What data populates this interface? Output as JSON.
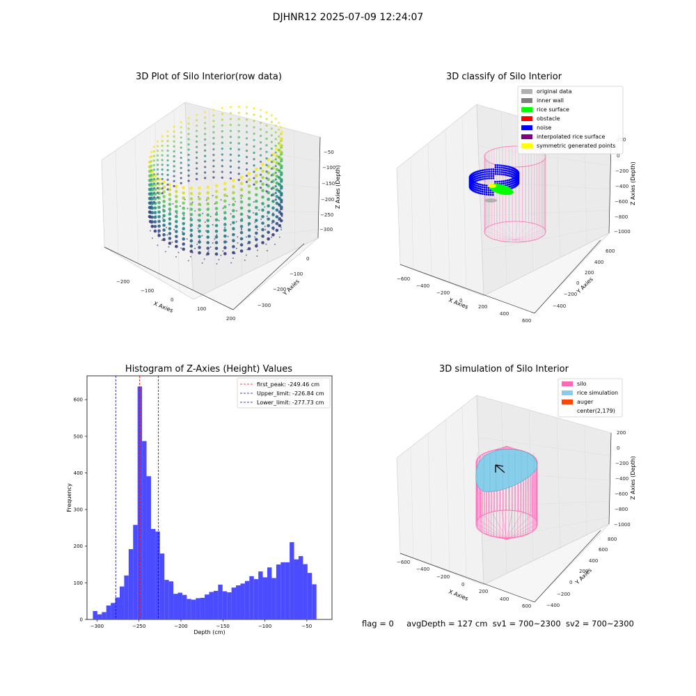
{
  "figure": {
    "suptitle": "DJHNR12 2025-07-09 12:24:07",
    "status": {
      "flag": "flag = 0",
      "avg_depth": "avgDepth = 127 cm",
      "sv1": "sv1 = 700~2300",
      "sv2": "sv2 = 700~2300"
    }
  },
  "colors": {
    "hist_bar": "#4b4bff",
    "first_peak": "#ff0000",
    "limits": "#0000aa",
    "silo": "#ff69b4",
    "rice_simulation": "#87ceeb",
    "auger": "#ff4500",
    "original_data": "#b0b0b0",
    "inner_wall": "#808080",
    "rice_surface": "#00ff00",
    "obstacle": "#ff0000",
    "noise": "#0000ff",
    "interpolated_rice_surface": "#800080",
    "symmetric_generated_points": "#ffff00"
  },
  "chart_data": [
    {
      "type": "scatter",
      "dimension": "3d",
      "title": "3D Plot of Silo Interior(row data)",
      "xlabel": "X Axies",
      "ylabel": "Y Axies",
      "zlabel": "Z Axies (Depth)",
      "x_ticks": [
        "−200",
        "−100",
        "0",
        "100",
        "200"
      ],
      "y_ticks": [
        "0",
        "−100",
        "−200",
        "−300"
      ],
      "z_ticks": [
        "−50",
        "−100",
        "−150",
        "−200",
        "−250",
        "−300"
      ],
      "colormap": "viridis"
    },
    {
      "type": "scatter",
      "dimension": "3d",
      "title": "3D classify of Silo Interior",
      "xlabel": "X Axies",
      "ylabel": "Y Axies",
      "zlabel": "Z Axies (Depth)",
      "x_ticks": [
        "−600",
        "−400",
        "−200",
        "0",
        "200",
        "400",
        "600"
      ],
      "y_ticks": [
        "600",
        "400",
        "200",
        "0",
        "−200",
        "−400"
      ],
      "z_ticks": [
        "200",
        "0",
        "−200",
        "−400",
        "−600",
        "−800",
        "−1000"
      ],
      "legend": {
        "position": "top-right",
        "entries": [
          {
            "label": "original data",
            "color": "#b0b0b0"
          },
          {
            "label": "inner wall",
            "color": "#808080"
          },
          {
            "label": "rice surface",
            "color": "#00ff00"
          },
          {
            "label": "obstacle",
            "color": "#ff0000"
          },
          {
            "label": "noise",
            "color": "#0000ff"
          },
          {
            "label": "interpolated rice surface",
            "color": "#800080"
          },
          {
            "label": "symmetric generated points",
            "color": "#ffff00"
          }
        ]
      }
    },
    {
      "type": "bar",
      "title": "Histogram of Z-Axies (Height) Values",
      "xlabel": "Depth (cm)",
      "ylabel": "Frequency",
      "xlim": [
        -312,
        -20
      ],
      "ylim": [
        0,
        665
      ],
      "x_ticks": [
        -300,
        -250,
        -200,
        -150,
        -100,
        -50
      ],
      "x_tick_labels": [
        "−300",
        "−250",
        "−200",
        "−150",
        "−100",
        "−50"
      ],
      "y_ticks": [
        0,
        100,
        200,
        300,
        400,
        500,
        600
      ],
      "y_tick_labels": [
        "0",
        "100",
        "200",
        "300",
        "400",
        "500",
        "600"
      ],
      "bin_start": -305,
      "bin_width": 5.33,
      "values": [
        23,
        14,
        20,
        38,
        45,
        60,
        90,
        120,
        192,
        258,
        636,
        487,
        391,
        247,
        240,
        180,
        108,
        104,
        70,
        73,
        67,
        56,
        54,
        58,
        59,
        68,
        75,
        78,
        95,
        77,
        74,
        87,
        93,
        98,
        105,
        118,
        110,
        131,
        115,
        142,
        113,
        150,
        156,
        156,
        211,
        164,
        173,
        151,
        127,
        96
      ],
      "vlines": [
        {
          "x": -249.46,
          "label": "first_peak: -249.46 cm",
          "color": "#ff0000"
        },
        {
          "x": -226.84,
          "label": "Upper_limit: -226.84 cm",
          "color": "#0000aa"
        },
        {
          "x": -277.73,
          "label": "Lower_limit: -277.73 cm",
          "color": "#0000aa"
        }
      ],
      "legend": {
        "position": "top-right"
      }
    },
    {
      "type": "scatter",
      "dimension": "3d",
      "title": "3D simulation of Silo Interior",
      "xlabel": "X Axies",
      "ylabel": "Y Axies",
      "zlabel": "Z Axies (Depth)",
      "x_ticks": [
        "−600",
        "−400",
        "−200",
        "0",
        "200",
        "400",
        "600"
      ],
      "y_ticks": [
        "800",
        "600",
        "400",
        "200",
        "0",
        "−200",
        "−400"
      ],
      "z_ticks": [
        "200",
        "0",
        "−200",
        "−400",
        "−600",
        "−800",
        "−1000"
      ],
      "legend": {
        "position": "top-right",
        "entries": [
          {
            "label": "silo",
            "color": "#ff69b4"
          },
          {
            "label": "rice simulation",
            "color": "#87ceeb"
          },
          {
            "label": "auger",
            "color": "#ff4500"
          },
          {
            "label": "center(2,179)",
            "color": "#ffffff"
          }
        ]
      }
    }
  ]
}
